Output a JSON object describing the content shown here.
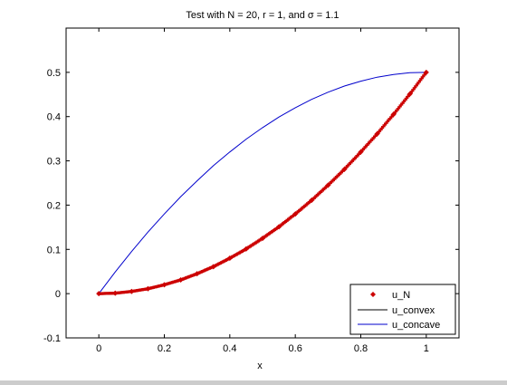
{
  "chart_data": {
    "type": "scatter",
    "title": "Test with N = 20, r = 1, and σ = 1.1",
    "xlabel": "x",
    "ylabel": "",
    "xlim": [
      -0.1,
      1.1
    ],
    "ylim": [
      -0.1,
      0.6
    ],
    "xticks": [
      0,
      0.2,
      0.4,
      0.6,
      0.8,
      1
    ],
    "xtick_labels": [
      "0",
      "0.2",
      "0.4",
      "0.6",
      "0.8",
      "1"
    ],
    "yticks": [
      -0.1,
      0,
      0.1,
      0.2,
      0.3,
      0.4,
      0.5
    ],
    "ytick_labels": [
      "-0.1",
      "0",
      "0.1",
      "0.2",
      "0.3",
      "0.4",
      "0.5"
    ],
    "grid": false,
    "legend_position": "bottom-right",
    "series": [
      {
        "name": "u_N",
        "kind": "markers",
        "color": "#cc0000",
        "x": [
          0.0,
          0.05,
          0.1,
          0.15,
          0.2,
          0.25,
          0.3,
          0.35,
          0.4,
          0.45,
          0.5,
          0.55,
          0.6,
          0.65,
          0.7,
          0.75,
          0.8,
          0.85,
          0.9,
          0.95,
          1.0
        ],
        "y": [
          0.0,
          0.001,
          0.005,
          0.011,
          0.02,
          0.031,
          0.045,
          0.061,
          0.08,
          0.101,
          0.125,
          0.151,
          0.18,
          0.211,
          0.245,
          0.281,
          0.32,
          0.361,
          0.405,
          0.451,
          0.5
        ]
      },
      {
        "name": "u_convex",
        "kind": "line",
        "color": "#000000",
        "x": [
          0.0,
          0.05,
          0.1,
          0.15,
          0.2,
          0.25,
          0.3,
          0.35,
          0.4,
          0.45,
          0.5,
          0.55,
          0.6,
          0.65,
          0.7,
          0.75,
          0.8,
          0.85,
          0.9,
          0.95,
          1.0
        ],
        "y": [
          0.0,
          0.001,
          0.005,
          0.011,
          0.02,
          0.031,
          0.045,
          0.061,
          0.08,
          0.101,
          0.125,
          0.151,
          0.18,
          0.211,
          0.245,
          0.281,
          0.32,
          0.361,
          0.405,
          0.451,
          0.5
        ]
      },
      {
        "name": "u_concave",
        "kind": "line",
        "color": "#0000cc",
        "x": [
          0.0,
          0.05,
          0.1,
          0.15,
          0.2,
          0.25,
          0.3,
          0.35,
          0.4,
          0.45,
          0.5,
          0.55,
          0.6,
          0.65,
          0.7,
          0.75,
          0.8,
          0.85,
          0.9,
          0.95,
          1.0
        ],
        "y": [
          0.0,
          0.049,
          0.095,
          0.139,
          0.18,
          0.219,
          0.255,
          0.289,
          0.32,
          0.349,
          0.375,
          0.399,
          0.42,
          0.439,
          0.455,
          0.469,
          0.48,
          0.489,
          0.495,
          0.499,
          0.5
        ]
      }
    ]
  }
}
